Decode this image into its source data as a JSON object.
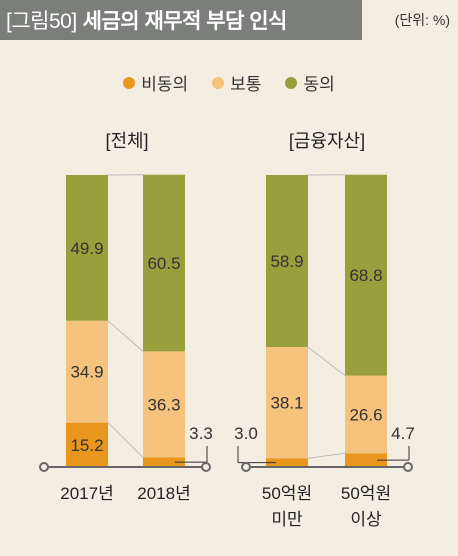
{
  "header": {
    "figure_number": "[그림50]",
    "title": "세금의 재무적 부담 인식",
    "unit": "(단위: %)"
  },
  "legend": [
    {
      "label": "비동의",
      "color": "#e8961e"
    },
    {
      "label": "보통",
      "color": "#f5c37e"
    },
    {
      "label": "동의",
      "color": "#9a9f3e"
    }
  ],
  "chart_data": [
    {
      "type": "bar",
      "stacked": true,
      "title": "[전체]",
      "categories": [
        "2017년",
        "2018년"
      ],
      "series": [
        {
          "name": "비동의",
          "values": [
            15.2,
            3.3
          ]
        },
        {
          "name": "보통",
          "values": [
            34.9,
            36.3
          ]
        },
        {
          "name": "동의",
          "values": [
            49.9,
            60.5
          ]
        }
      ]
    },
    {
      "type": "bar",
      "stacked": true,
      "title": "[금융자산]",
      "categories": [
        "50억원 미만",
        "50억원 이상"
      ],
      "series": [
        {
          "name": "비동의",
          "values": [
            3.0,
            4.7
          ]
        },
        {
          "name": "보통",
          "values": [
            38.1,
            26.6
          ]
        },
        {
          "name": "동의",
          "values": [
            58.9,
            68.8
          ]
        }
      ]
    }
  ],
  "category_lines": {
    "50억원 미만": [
      "50억원",
      "미만"
    ],
    "50억원 이상": [
      "50억원",
      "이상"
    ]
  }
}
